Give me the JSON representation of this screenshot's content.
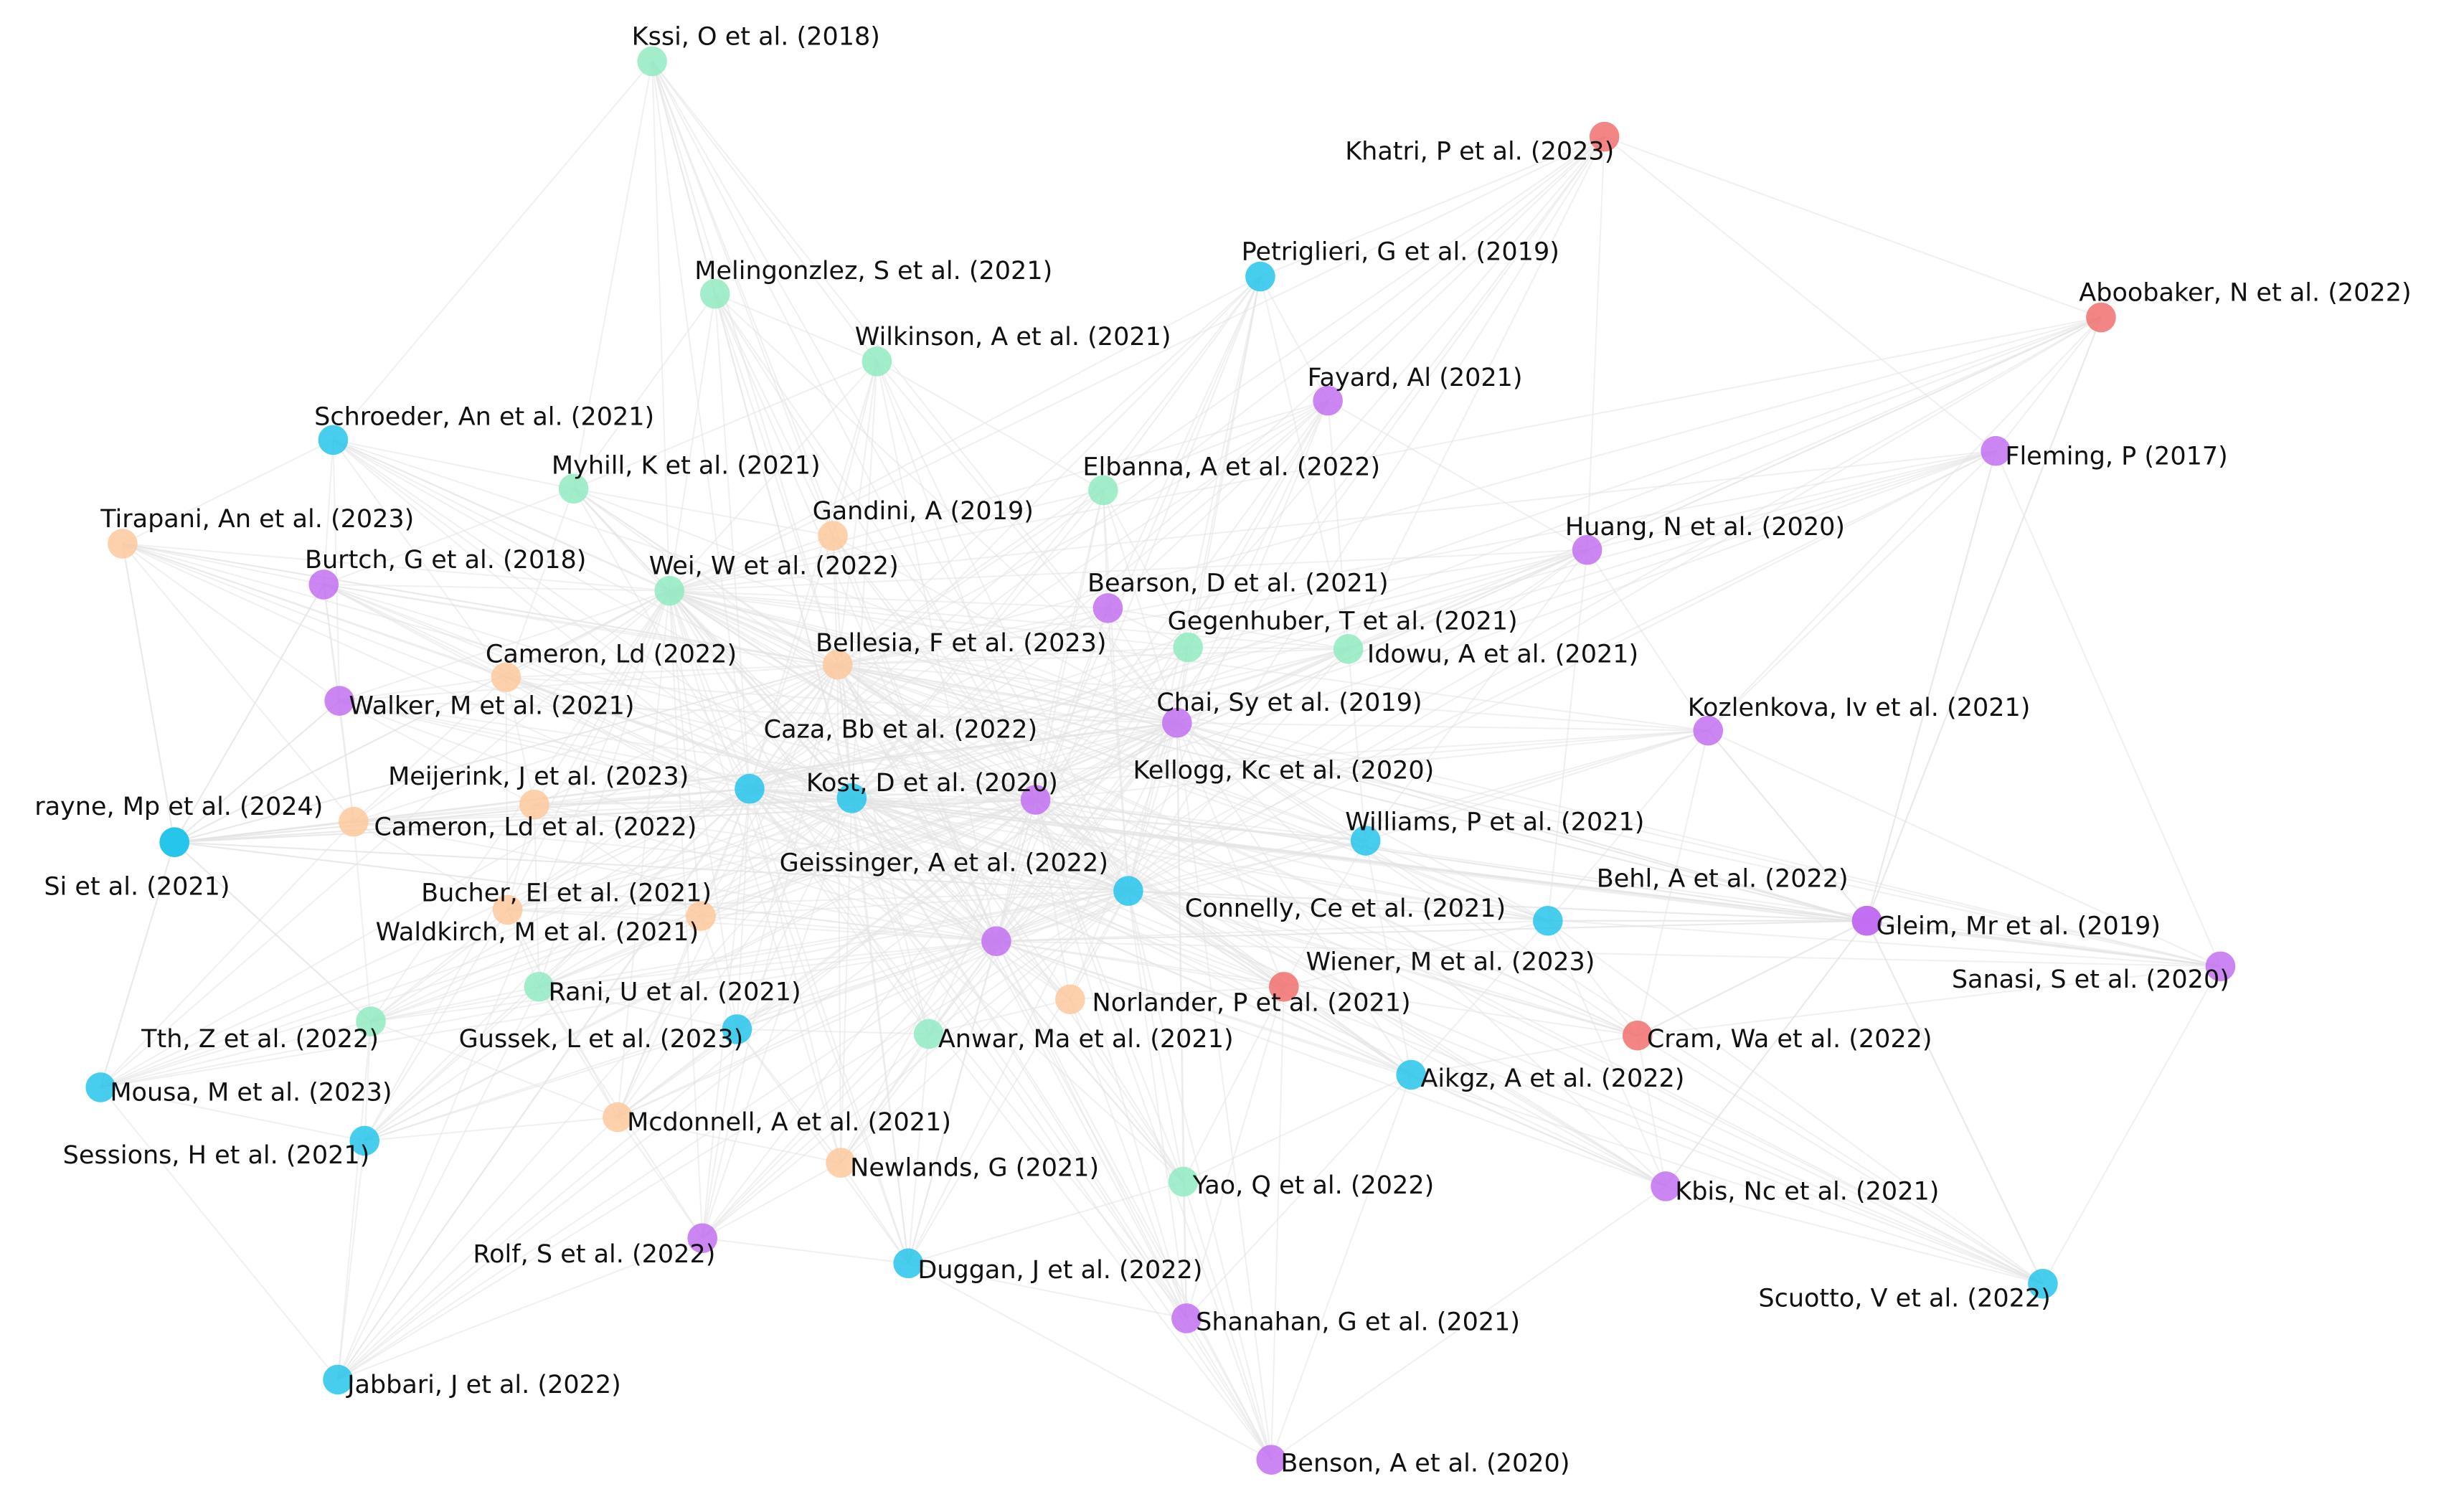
{
  "colors": {
    "cluster-red": "#f06a6a",
    "cluster-cyan": "#1ec3ec",
    "cluster-green": "#8deabf",
    "cluster-orange": "#fcc79a",
    "cluster-purple": "#c06bf0",
    "edge": "#e3e3e3"
  },
  "network": {
    "nodes": [
      {
        "id": "kssi",
        "label": "Kssi, O et al. (2018)",
        "cluster": "cluster-green"
      },
      {
        "id": "khatri",
        "label": "Khatri, P et al. (2023)",
        "cluster": "cluster-red"
      },
      {
        "id": "aboobaker",
        "label": "Aboobaker, N et al. (2022)",
        "cluster": "cluster-red"
      },
      {
        "id": "petriglieri",
        "label": "Petriglieri, G et al. (2019)",
        "cluster": "cluster-cyan"
      },
      {
        "id": "melingonzlez",
        "label": "Melingonzlez, S et al. (2021)",
        "cluster": "cluster-green"
      },
      {
        "id": "wilkinson",
        "label": "Wilkinson, A et al. (2021)",
        "cluster": "cluster-green"
      },
      {
        "id": "fayard",
        "label": "Fayard, Al (2021)",
        "cluster": "cluster-purple"
      },
      {
        "id": "fleming",
        "label": "Fleming, P (2017)",
        "cluster": "cluster-purple"
      },
      {
        "id": "schroeder",
        "label": "Schroeder, An et al. (2021)",
        "cluster": "cluster-cyan"
      },
      {
        "id": "myhill",
        "label": "Myhill, K et al. (2021)",
        "cluster": "cluster-green"
      },
      {
        "id": "elbanna",
        "label": "Elbanna, A et al. (2022)",
        "cluster": "cluster-green"
      },
      {
        "id": "tirapani",
        "label": "Tirapani, An et al. (2023)",
        "cluster": "cluster-orange"
      },
      {
        "id": "gandini",
        "label": "Gandini, A (2019)",
        "cluster": "cluster-orange"
      },
      {
        "id": "huang",
        "label": "Huang, N et al. (2020)",
        "cluster": "cluster-purple"
      },
      {
        "id": "burtch",
        "label": "Burtch, G et al. (2018)",
        "cluster": "cluster-purple"
      },
      {
        "id": "wei",
        "label": "Wei, W et al. (2022)",
        "cluster": "cluster-green"
      },
      {
        "id": "bearson",
        "label": "Bearson, D et al. (2021)",
        "cluster": "cluster-purple"
      },
      {
        "id": "gegenhuber",
        "label": "Gegenhuber, T et al. (2021)",
        "cluster": "cluster-green"
      },
      {
        "id": "idowu",
        "label": "Idowu, A et al. (2021)",
        "cluster": "cluster-green"
      },
      {
        "id": "cameron1",
        "label": "Cameron, Ld (2022)",
        "cluster": "cluster-orange"
      },
      {
        "id": "bellesia",
        "label": "Bellesia, F et al. (2023)",
        "cluster": "cluster-orange"
      },
      {
        "id": "walker",
        "label": "Walker, M et al. (2021)",
        "cluster": "cluster-purple"
      },
      {
        "id": "chai",
        "label": "Chai, Sy et al. (2019)",
        "cluster": "cluster-purple"
      },
      {
        "id": "kozlenkova",
        "label": "Kozlenkova, Iv et al. (2021)",
        "cluster": "cluster-purple"
      },
      {
        "id": "caza",
        "label": "Caza, Bb et al. (2022)",
        "cluster": "cluster-cyan"
      },
      {
        "id": "meijerink",
        "label": "Meijerink, J et al. (2023)",
        "cluster": "cluster-orange"
      },
      {
        "id": "kost",
        "label": "Kost, D et al. (2020)",
        "cluster": "cluster-cyan"
      },
      {
        "id": "kellogg",
        "label": "Kellogg, Kc et al. (2020)",
        "cluster": "cluster-purple"
      },
      {
        "id": "frayne",
        "label": "rayne, Mp et al. (2024)",
        "cluster": "cluster-cyan"
      },
      {
        "id": "cameron2",
        "label": "Cameron, Ld et al. (2022)",
        "cluster": "cluster-orange"
      },
      {
        "id": "williams",
        "label": "Williams, P et al. (2021)",
        "cluster": "cluster-cyan"
      },
      {
        "id": "si",
        "label": "Si et al. (2021)",
        "cluster": "cluster-cyan"
      },
      {
        "id": "geissinger",
        "label": "Geissinger, A et al. (2022)",
        "cluster": "cluster-cyan"
      },
      {
        "id": "behl",
        "label": "Behl, A et al. (2022)",
        "cluster": "cluster-purple"
      },
      {
        "id": "bucher",
        "label": "Bucher, El et al. (2021)",
        "cluster": "cluster-orange"
      },
      {
        "id": "connelly",
        "label": "Connelly, Ce et al. (2021)",
        "cluster": "cluster-cyan"
      },
      {
        "id": "gleim",
        "label": "Gleim, Mr et al. (2019)",
        "cluster": "cluster-purple"
      },
      {
        "id": "waldkirch",
        "label": "Waldkirch, M et al. (2021)",
        "cluster": "cluster-orange"
      },
      {
        "id": "unlabeled",
        "label": "",
        "cluster": "cluster-purple"
      },
      {
        "id": "wiener",
        "label": "Wiener, M et al. (2023)",
        "cluster": "cluster-red"
      },
      {
        "id": "sanasi",
        "label": "Sanasi, S et al. (2020)",
        "cluster": "cluster-purple"
      },
      {
        "id": "rani",
        "label": "Rani, U et al. (2021)",
        "cluster": "cluster-green"
      },
      {
        "id": "norlander",
        "label": "Norlander, P et al. (2021)",
        "cluster": "cluster-orange"
      },
      {
        "id": "tth",
        "label": "Tth, Z et al. (2022)",
        "cluster": "cluster-green"
      },
      {
        "id": "gussek",
        "label": "Gussek, L et al. (2023)",
        "cluster": "cluster-cyan"
      },
      {
        "id": "anwar",
        "label": "Anwar, Ma et al. (2021)",
        "cluster": "cluster-green"
      },
      {
        "id": "cram",
        "label": "Cram, Wa et al. (2022)",
        "cluster": "cluster-red"
      },
      {
        "id": "mousa",
        "label": "Mousa, M et al. (2023)",
        "cluster": "cluster-cyan"
      },
      {
        "id": "aikgz",
        "label": "Aikgz, A et al. (2022)",
        "cluster": "cluster-cyan"
      },
      {
        "id": "mcdonnell",
        "label": "Mcdonnell, A et al. (2021)",
        "cluster": "cluster-orange"
      },
      {
        "id": "sessions",
        "label": "Sessions, H et al. (2021)",
        "cluster": "cluster-cyan"
      },
      {
        "id": "newlands",
        "label": "Newlands, G (2021)",
        "cluster": "cluster-orange"
      },
      {
        "id": "yao",
        "label": "Yao, Q et al. (2022)",
        "cluster": "cluster-green"
      },
      {
        "id": "kbis",
        "label": "Kbis, Nc et al. (2021)",
        "cluster": "cluster-purple"
      },
      {
        "id": "rolf",
        "label": "Rolf, S et al. (2022)",
        "cluster": "cluster-purple"
      },
      {
        "id": "duggan",
        "label": "Duggan, J et al. (2022)",
        "cluster": "cluster-cyan"
      },
      {
        "id": "scuotto",
        "label": "Scuotto, V et al. (2022)",
        "cluster": "cluster-cyan"
      },
      {
        "id": "shanahan",
        "label": "Shanahan, G et al. (2021)",
        "cluster": "cluster-purple"
      },
      {
        "id": "jabbari",
        "label": "Jabbari, J et al. (2022)",
        "cluster": "cluster-cyan"
      },
      {
        "id": "benson",
        "label": "Benson, A et al. (2020)",
        "cluster": "cluster-purple"
      }
    ]
  }
}
